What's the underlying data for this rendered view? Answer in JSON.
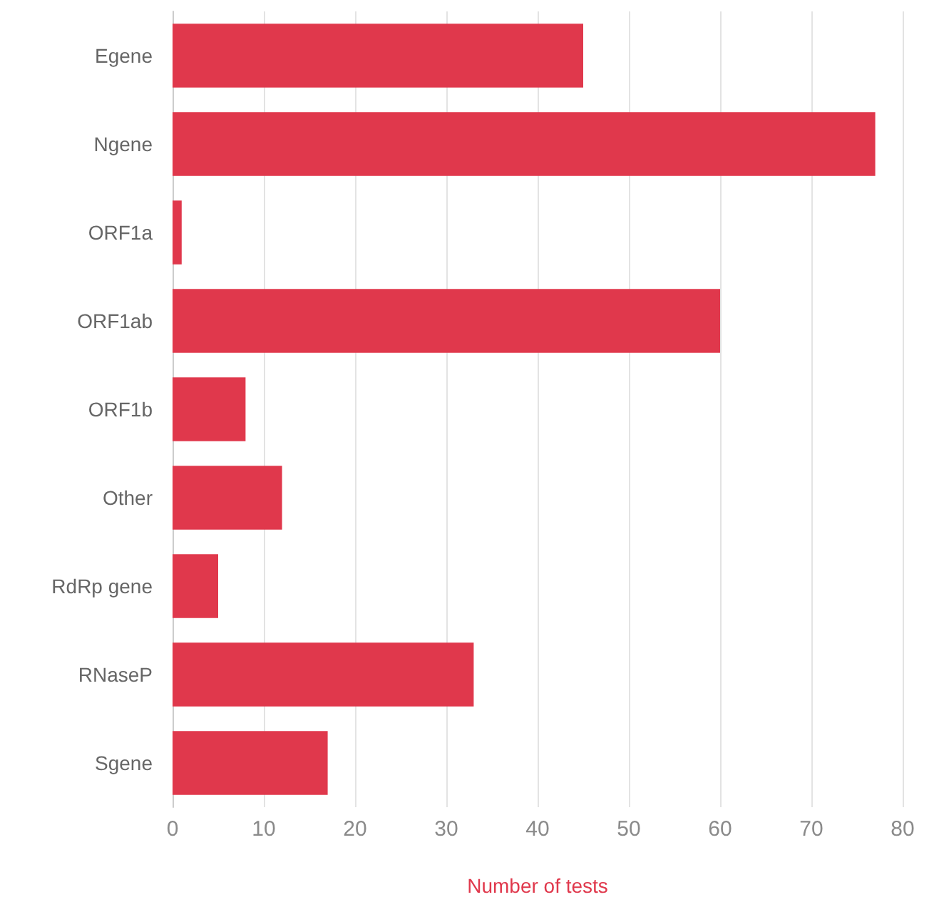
{
  "chart_data": {
    "type": "bar",
    "orientation": "horizontal",
    "xlabel": "Number of tests",
    "categories": [
      "Egene",
      "Ngene",
      "ORF1a",
      "ORF1ab",
      "ORF1b",
      "Other",
      "RdRp gene",
      "RNaseP",
      "Sgene"
    ],
    "values": [
      45,
      77,
      1,
      60,
      8,
      12,
      5,
      33,
      17
    ],
    "color": "#e0384c",
    "xlim": [
      0,
      80
    ],
    "xticks": [
      0,
      10,
      20,
      30,
      40,
      50,
      60,
      70,
      80
    ],
    "grid": "x"
  }
}
